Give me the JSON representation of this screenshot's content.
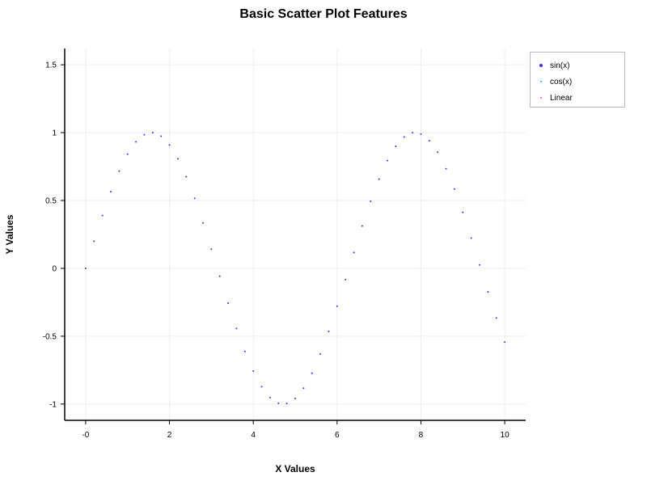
{
  "chart_data": {
    "type": "scatter",
    "title": "Basic Scatter Plot Features",
    "xlabel": "X Values",
    "ylabel": "Y Values",
    "xlim": [
      -0.5,
      10.5
    ],
    "ylim": [
      -1.12,
      1.62
    ],
    "x_ticks": [
      0,
      2,
      4,
      6,
      8,
      10
    ],
    "x_tick_labels": [
      "-0",
      "2",
      "4",
      "6",
      "8",
      "10"
    ],
    "y_ticks": [
      -1,
      -0.5,
      0,
      0.5,
      1,
      1.5
    ],
    "y_tick_labels": [
      "-1",
      "-0.5",
      "0",
      "0.5",
      "1",
      "1.5"
    ],
    "grid": true,
    "legend_position": "top-right",
    "series": [
      {
        "name": "sin(x)",
        "color": "#3333ff",
        "points": [
          [
            0.0,
            0.0
          ],
          [
            0.2,
            0.199
          ],
          [
            0.4,
            0.389
          ],
          [
            0.6,
            0.565
          ],
          [
            0.8,
            0.717
          ],
          [
            1.0,
            0.841
          ],
          [
            1.2,
            0.932
          ],
          [
            1.4,
            0.985
          ],
          [
            1.6,
            1.0
          ],
          [
            1.8,
            0.974
          ],
          [
            2.0,
            0.909
          ],
          [
            2.2,
            0.808
          ],
          [
            2.4,
            0.675
          ],
          [
            2.6,
            0.516
          ],
          [
            2.8,
            0.335
          ],
          [
            3.0,
            0.141
          ],
          [
            3.2,
            -0.058
          ],
          [
            3.4,
            -0.256
          ],
          [
            3.6,
            -0.443
          ],
          [
            3.8,
            -0.612
          ],
          [
            4.0,
            -0.757
          ],
          [
            4.2,
            -0.872
          ],
          [
            4.4,
            -0.952
          ],
          [
            4.6,
            -0.994
          ],
          [
            4.8,
            -0.996
          ],
          [
            5.0,
            -0.959
          ],
          [
            5.2,
            -0.883
          ],
          [
            5.4,
            -0.773
          ],
          [
            5.6,
            -0.631
          ],
          [
            5.8,
            -0.465
          ],
          [
            6.0,
            -0.279
          ],
          [
            6.2,
            -0.083
          ],
          [
            6.4,
            0.117
          ],
          [
            6.6,
            0.312
          ],
          [
            6.8,
            0.494
          ],
          [
            7.0,
            0.657
          ],
          [
            7.2,
            0.794
          ],
          [
            7.4,
            0.899
          ],
          [
            7.6,
            0.968
          ],
          [
            7.8,
            0.999
          ],
          [
            8.0,
            0.989
          ],
          [
            8.2,
            0.941
          ],
          [
            8.4,
            0.855
          ],
          [
            8.6,
            0.734
          ],
          [
            8.8,
            0.585
          ],
          [
            9.0,
            0.412
          ],
          [
            9.2,
            0.223
          ],
          [
            9.4,
            0.025
          ],
          [
            9.6,
            -0.174
          ],
          [
            9.8,
            -0.366
          ],
          [
            10.0,
            -0.544
          ]
        ]
      },
      {
        "name": "cos(x)",
        "color": "#00cccc",
        "points": []
      },
      {
        "name": "Linear",
        "color": "#ff44ff",
        "points": []
      }
    ]
  }
}
